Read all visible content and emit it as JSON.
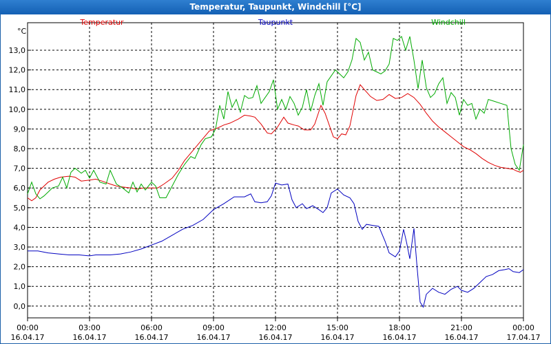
{
  "title": "Temperatur, Taupunkt, Windchill [°C]",
  "chart_data": {
    "type": "line",
    "title": "Temperatur, Taupunkt, Windchill [°C]",
    "ylabel": "°C",
    "ylim": [
      -0.6,
      14.4
    ],
    "yticks": [
      "0,0",
      "1,0",
      "2,0",
      "3,0",
      "4,0",
      "5,0",
      "6,0",
      "7,0",
      "8,0",
      "9,0",
      "10,0",
      "11,0",
      "12,0",
      "13,0"
    ],
    "xlim": [
      0,
      24
    ],
    "xticks": [
      {
        "time": "00:00",
        "date": "16.04.17"
      },
      {
        "time": "03:00",
        "date": "16.04.17"
      },
      {
        "time": "06:00",
        "date": "16.04.17"
      },
      {
        "time": "09:00",
        "date": "16.04.17"
      },
      {
        "time": "12:00",
        "date": "16.04.17"
      },
      {
        "time": "15:00",
        "date": "16.04.17"
      },
      {
        "time": "18:00",
        "date": "16.04.17"
      },
      {
        "time": "21:00",
        "date": "16.04.17"
      },
      {
        "time": "00:00",
        "date": "17.04.17"
      }
    ],
    "grid": true,
    "legend_position": "top",
    "series": [
      {
        "name": "Temperatur",
        "color": "#e00000",
        "points": [
          [
            0,
            5.5
          ],
          [
            0.2,
            5.35
          ],
          [
            0.4,
            5.5
          ],
          [
            0.6,
            5.9
          ],
          [
            0.8,
            6.1
          ],
          [
            1.0,
            6.3
          ],
          [
            1.3,
            6.45
          ],
          [
            1.6,
            6.55
          ],
          [
            2.0,
            6.6
          ],
          [
            2.3,
            6.55
          ],
          [
            2.6,
            6.35
          ],
          [
            3.0,
            6.4
          ],
          [
            3.3,
            6.45
          ],
          [
            3.6,
            6.35
          ],
          [
            4.0,
            6.2
          ],
          [
            4.3,
            6.1
          ],
          [
            4.6,
            6.05
          ],
          [
            5.0,
            6.0
          ],
          [
            5.3,
            5.95
          ],
          [
            5.6,
            6.0
          ],
          [
            6.0,
            6.0
          ],
          [
            6.3,
            6.0
          ],
          [
            6.6,
            6.2
          ],
          [
            7.0,
            6.5
          ],
          [
            7.3,
            6.9
          ],
          [
            7.6,
            7.4
          ],
          [
            8.0,
            7.9
          ],
          [
            8.4,
            8.4
          ],
          [
            8.8,
            8.9
          ],
          [
            9.2,
            9.05
          ],
          [
            9.5,
            9.2
          ],
          [
            9.8,
            9.3
          ],
          [
            10.2,
            9.5
          ],
          [
            10.5,
            9.7
          ],
          [
            10.8,
            9.65
          ],
          [
            11.0,
            9.6
          ],
          [
            11.3,
            9.25
          ],
          [
            11.6,
            8.8
          ],
          [
            11.8,
            8.75
          ],
          [
            12.1,
            9.1
          ],
          [
            12.4,
            9.6
          ],
          [
            12.6,
            9.3
          ],
          [
            12.9,
            9.2
          ],
          [
            13.1,
            9.15
          ],
          [
            13.4,
            8.95
          ],
          [
            13.7,
            8.95
          ],
          [
            13.9,
            9.25
          ],
          [
            14.2,
            10.2
          ],
          [
            14.4,
            9.8
          ],
          [
            14.6,
            9.2
          ],
          [
            14.8,
            8.6
          ],
          [
            15.0,
            8.5
          ],
          [
            15.2,
            8.75
          ],
          [
            15.4,
            8.7
          ],
          [
            15.6,
            9.15
          ],
          [
            15.9,
            10.7
          ],
          [
            16.1,
            11.25
          ],
          [
            16.3,
            11.0
          ],
          [
            16.6,
            10.65
          ],
          [
            16.9,
            10.45
          ],
          [
            17.2,
            10.5
          ],
          [
            17.5,
            10.75
          ],
          [
            17.8,
            10.55
          ],
          [
            18.1,
            10.6
          ],
          [
            18.4,
            10.8
          ],
          [
            18.7,
            10.6
          ],
          [
            19.0,
            10.25
          ],
          [
            19.3,
            9.8
          ],
          [
            19.6,
            9.4
          ],
          [
            19.9,
            9.1
          ],
          [
            20.2,
            8.85
          ],
          [
            20.5,
            8.6
          ],
          [
            20.8,
            8.35
          ],
          [
            21.1,
            8.1
          ],
          [
            21.4,
            7.95
          ],
          [
            21.7,
            7.75
          ],
          [
            22.0,
            7.5
          ],
          [
            22.3,
            7.3
          ],
          [
            22.6,
            7.15
          ],
          [
            22.9,
            7.05
          ],
          [
            23.2,
            7.0
          ],
          [
            23.5,
            6.95
          ],
          [
            23.7,
            6.85
          ],
          [
            23.85,
            6.8
          ],
          [
            24.0,
            6.9
          ]
        ]
      },
      {
        "name": "Taupunkt",
        "color": "#0000c0",
        "points": [
          [
            0,
            2.8
          ],
          [
            0.5,
            2.8
          ],
          [
            1.0,
            2.7
          ],
          [
            1.5,
            2.65
          ],
          [
            2.0,
            2.6
          ],
          [
            2.5,
            2.6
          ],
          [
            3.0,
            2.55
          ],
          [
            3.3,
            2.6
          ],
          [
            3.6,
            2.6
          ],
          [
            4.0,
            2.6
          ],
          [
            4.5,
            2.65
          ],
          [
            5.0,
            2.75
          ],
          [
            5.5,
            2.9
          ],
          [
            6.0,
            3.1
          ],
          [
            6.5,
            3.3
          ],
          [
            7.0,
            3.6
          ],
          [
            7.5,
            3.9
          ],
          [
            8.0,
            4.1
          ],
          [
            8.5,
            4.4
          ],
          [
            9.0,
            4.9
          ],
          [
            9.5,
            5.2
          ],
          [
            10.0,
            5.55
          ],
          [
            10.5,
            5.55
          ],
          [
            10.8,
            5.7
          ],
          [
            11.0,
            5.3
          ],
          [
            11.3,
            5.25
          ],
          [
            11.6,
            5.3
          ],
          [
            11.8,
            5.6
          ],
          [
            12.0,
            6.25
          ],
          [
            12.3,
            6.15
          ],
          [
            12.6,
            6.2
          ],
          [
            12.8,
            5.4
          ],
          [
            13.0,
            5.0
          ],
          [
            13.3,
            5.2
          ],
          [
            13.5,
            4.95
          ],
          [
            13.8,
            5.1
          ],
          [
            14.1,
            4.9
          ],
          [
            14.3,
            4.75
          ],
          [
            14.5,
            5.0
          ],
          [
            14.7,
            5.75
          ],
          [
            15.0,
            5.95
          ],
          [
            15.3,
            5.65
          ],
          [
            15.6,
            5.5
          ],
          [
            15.8,
            5.2
          ],
          [
            16.0,
            4.3
          ],
          [
            16.2,
            3.9
          ],
          [
            16.4,
            4.15
          ],
          [
            16.7,
            4.1
          ],
          [
            17.0,
            4.05
          ],
          [
            17.3,
            3.3
          ],
          [
            17.5,
            2.7
          ],
          [
            17.8,
            2.5
          ],
          [
            18.0,
            2.8
          ],
          [
            18.2,
            3.9
          ],
          [
            18.35,
            3.2
          ],
          [
            18.5,
            2.4
          ],
          [
            18.7,
            3.95
          ],
          [
            18.85,
            2.0
          ],
          [
            19.0,
            0.2
          ],
          [
            19.15,
            -0.05
          ],
          [
            19.3,
            0.6
          ],
          [
            19.6,
            0.9
          ],
          [
            19.9,
            0.7
          ],
          [
            20.2,
            0.6
          ],
          [
            20.5,
            0.85
          ],
          [
            20.8,
            1.0
          ],
          [
            21.0,
            0.8
          ],
          [
            21.3,
            0.7
          ],
          [
            21.6,
            0.9
          ],
          [
            21.9,
            1.2
          ],
          [
            22.2,
            1.5
          ],
          [
            22.5,
            1.6
          ],
          [
            22.8,
            1.8
          ],
          [
            23.1,
            1.85
          ],
          [
            23.3,
            1.9
          ],
          [
            23.5,
            1.75
          ],
          [
            23.8,
            1.7
          ],
          [
            24.0,
            1.85
          ]
        ]
      },
      {
        "name": "Windchill",
        "color": "#00aa00",
        "points": [
          [
            0,
            5.7
          ],
          [
            0.2,
            6.3
          ],
          [
            0.4,
            5.7
          ],
          [
            0.6,
            5.45
          ],
          [
            0.8,
            5.6
          ],
          [
            1.0,
            5.8
          ],
          [
            1.2,
            6.0
          ],
          [
            1.5,
            6.1
          ],
          [
            1.7,
            6.55
          ],
          [
            1.9,
            6.0
          ],
          [
            2.1,
            6.8
          ],
          [
            2.3,
            7.0
          ],
          [
            2.6,
            6.75
          ],
          [
            2.8,
            6.9
          ],
          [
            3.0,
            6.5
          ],
          [
            3.2,
            6.9
          ],
          [
            3.5,
            6.3
          ],
          [
            3.8,
            6.2
          ],
          [
            4.0,
            6.9
          ],
          [
            4.3,
            6.2
          ],
          [
            4.6,
            6.0
          ],
          [
            4.9,
            5.75
          ],
          [
            5.1,
            6.3
          ],
          [
            5.3,
            5.8
          ],
          [
            5.5,
            6.2
          ],
          [
            5.7,
            5.9
          ],
          [
            6.0,
            6.3
          ],
          [
            6.2,
            6.1
          ],
          [
            6.4,
            5.5
          ],
          [
            6.7,
            5.5
          ],
          [
            7.0,
            6.1
          ],
          [
            7.3,
            6.7
          ],
          [
            7.6,
            7.2
          ],
          [
            7.9,
            7.6
          ],
          [
            8.1,
            7.5
          ],
          [
            8.4,
            8.2
          ],
          [
            8.6,
            8.5
          ],
          [
            8.9,
            8.6
          ],
          [
            9.1,
            9.0
          ],
          [
            9.3,
            10.2
          ],
          [
            9.5,
            9.5
          ],
          [
            9.7,
            10.9
          ],
          [
            9.9,
            10.1
          ],
          [
            10.1,
            10.5
          ],
          [
            10.3,
            9.85
          ],
          [
            10.5,
            10.7
          ],
          [
            10.7,
            10.55
          ],
          [
            10.9,
            10.6
          ],
          [
            11.1,
            11.2
          ],
          [
            11.3,
            10.3
          ],
          [
            11.5,
            10.6
          ],
          [
            11.7,
            10.9
          ],
          [
            11.9,
            11.5
          ],
          [
            12.1,
            10.0
          ],
          [
            12.3,
            10.5
          ],
          [
            12.5,
            10.0
          ],
          [
            12.7,
            10.65
          ],
          [
            12.9,
            10.3
          ],
          [
            13.1,
            9.7
          ],
          [
            13.3,
            10.1
          ],
          [
            13.5,
            11.0
          ],
          [
            13.7,
            9.9
          ],
          [
            13.9,
            10.7
          ],
          [
            14.1,
            11.3
          ],
          [
            14.3,
            10.2
          ],
          [
            14.5,
            11.4
          ],
          [
            14.7,
            11.7
          ],
          [
            14.9,
            12.0
          ],
          [
            15.1,
            11.8
          ],
          [
            15.3,
            11.6
          ],
          [
            15.5,
            11.9
          ],
          [
            15.7,
            12.5
          ],
          [
            15.9,
            13.6
          ],
          [
            16.1,
            13.4
          ],
          [
            16.3,
            12.5
          ],
          [
            16.5,
            12.9
          ],
          [
            16.7,
            12.0
          ],
          [
            16.9,
            11.9
          ],
          [
            17.1,
            11.8
          ],
          [
            17.3,
            11.95
          ],
          [
            17.5,
            12.3
          ],
          [
            17.7,
            13.6
          ],
          [
            17.9,
            13.5
          ],
          [
            18.1,
            13.7
          ],
          [
            18.3,
            13.0
          ],
          [
            18.5,
            13.7
          ],
          [
            18.7,
            12.5
          ],
          [
            18.9,
            11.05
          ],
          [
            19.1,
            12.5
          ],
          [
            19.3,
            11.1
          ],
          [
            19.5,
            10.6
          ],
          [
            19.7,
            10.8
          ],
          [
            19.9,
            11.3
          ],
          [
            20.1,
            11.6
          ],
          [
            20.3,
            10.3
          ],
          [
            20.5,
            10.85
          ],
          [
            20.7,
            10.6
          ],
          [
            20.9,
            9.7
          ],
          [
            21.1,
            10.5
          ],
          [
            21.3,
            10.2
          ],
          [
            21.5,
            10.3
          ],
          [
            21.7,
            9.5
          ],
          [
            21.9,
            10.0
          ],
          [
            22.1,
            9.8
          ],
          [
            22.3,
            10.5
          ],
          [
            22.6,
            10.4
          ],
          [
            22.9,
            10.3
          ],
          [
            23.2,
            10.2
          ],
          [
            23.4,
            8.0
          ],
          [
            23.6,
            7.2
          ],
          [
            23.8,
            6.9
          ],
          [
            24.0,
            8.2
          ]
        ]
      }
    ]
  }
}
